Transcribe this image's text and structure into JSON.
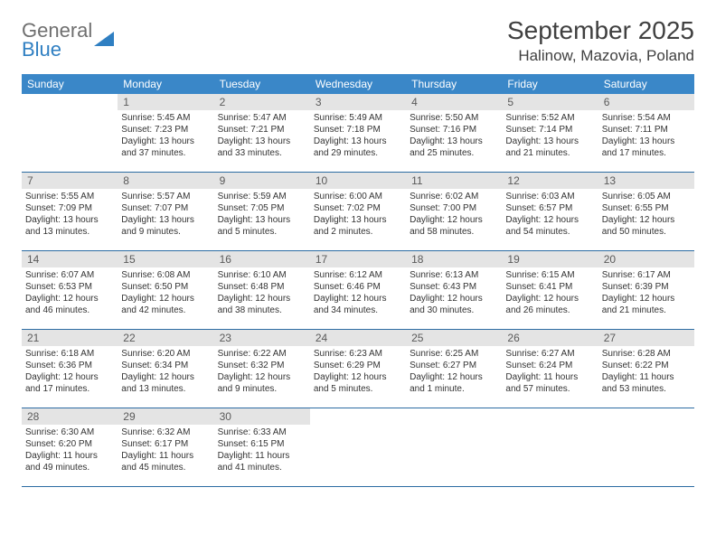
{
  "brand": {
    "part1": "General",
    "part2": "Blue"
  },
  "title": "September 2025",
  "location": "Halinow, Mazovia, Poland",
  "colors": {
    "header_bg": "#3a87c8",
    "header_text": "#ffffff",
    "daynum_bg": "#e4e4e4",
    "daynum_text": "#5a5a5a",
    "week_divider": "#2c6ca3",
    "body_text": "#333333",
    "title_text": "#404040",
    "logo_gray": "#6f6f6f",
    "logo_blue": "#2f7fc2"
  },
  "days_of_week": [
    "Sunday",
    "Monday",
    "Tuesday",
    "Wednesday",
    "Thursday",
    "Friday",
    "Saturday"
  ],
  "weeks": [
    [
      null,
      {
        "n": "1",
        "sunrise": "5:45 AM",
        "sunset": "7:23 PM",
        "daylight": "13 hours and 37 minutes."
      },
      {
        "n": "2",
        "sunrise": "5:47 AM",
        "sunset": "7:21 PM",
        "daylight": "13 hours and 33 minutes."
      },
      {
        "n": "3",
        "sunrise": "5:49 AM",
        "sunset": "7:18 PM",
        "daylight": "13 hours and 29 minutes."
      },
      {
        "n": "4",
        "sunrise": "5:50 AM",
        "sunset": "7:16 PM",
        "daylight": "13 hours and 25 minutes."
      },
      {
        "n": "5",
        "sunrise": "5:52 AM",
        "sunset": "7:14 PM",
        "daylight": "13 hours and 21 minutes."
      },
      {
        "n": "6",
        "sunrise": "5:54 AM",
        "sunset": "7:11 PM",
        "daylight": "13 hours and 17 minutes."
      }
    ],
    [
      {
        "n": "7",
        "sunrise": "5:55 AM",
        "sunset": "7:09 PM",
        "daylight": "13 hours and 13 minutes."
      },
      {
        "n": "8",
        "sunrise": "5:57 AM",
        "sunset": "7:07 PM",
        "daylight": "13 hours and 9 minutes."
      },
      {
        "n": "9",
        "sunrise": "5:59 AM",
        "sunset": "7:05 PM",
        "daylight": "13 hours and 5 minutes."
      },
      {
        "n": "10",
        "sunrise": "6:00 AM",
        "sunset": "7:02 PM",
        "daylight": "13 hours and 2 minutes."
      },
      {
        "n": "11",
        "sunrise": "6:02 AM",
        "sunset": "7:00 PM",
        "daylight": "12 hours and 58 minutes."
      },
      {
        "n": "12",
        "sunrise": "6:03 AM",
        "sunset": "6:57 PM",
        "daylight": "12 hours and 54 minutes."
      },
      {
        "n": "13",
        "sunrise": "6:05 AM",
        "sunset": "6:55 PM",
        "daylight": "12 hours and 50 minutes."
      }
    ],
    [
      {
        "n": "14",
        "sunrise": "6:07 AM",
        "sunset": "6:53 PM",
        "daylight": "12 hours and 46 minutes."
      },
      {
        "n": "15",
        "sunrise": "6:08 AM",
        "sunset": "6:50 PM",
        "daylight": "12 hours and 42 minutes."
      },
      {
        "n": "16",
        "sunrise": "6:10 AM",
        "sunset": "6:48 PM",
        "daylight": "12 hours and 38 minutes."
      },
      {
        "n": "17",
        "sunrise": "6:12 AM",
        "sunset": "6:46 PM",
        "daylight": "12 hours and 34 minutes."
      },
      {
        "n": "18",
        "sunrise": "6:13 AM",
        "sunset": "6:43 PM",
        "daylight": "12 hours and 30 minutes."
      },
      {
        "n": "19",
        "sunrise": "6:15 AM",
        "sunset": "6:41 PM",
        "daylight": "12 hours and 26 minutes."
      },
      {
        "n": "20",
        "sunrise": "6:17 AM",
        "sunset": "6:39 PM",
        "daylight": "12 hours and 21 minutes."
      }
    ],
    [
      {
        "n": "21",
        "sunrise": "6:18 AM",
        "sunset": "6:36 PM",
        "daylight": "12 hours and 17 minutes."
      },
      {
        "n": "22",
        "sunrise": "6:20 AM",
        "sunset": "6:34 PM",
        "daylight": "12 hours and 13 minutes."
      },
      {
        "n": "23",
        "sunrise": "6:22 AM",
        "sunset": "6:32 PM",
        "daylight": "12 hours and 9 minutes."
      },
      {
        "n": "24",
        "sunrise": "6:23 AM",
        "sunset": "6:29 PM",
        "daylight": "12 hours and 5 minutes."
      },
      {
        "n": "25",
        "sunrise": "6:25 AM",
        "sunset": "6:27 PM",
        "daylight": "12 hours and 1 minute."
      },
      {
        "n": "26",
        "sunrise": "6:27 AM",
        "sunset": "6:24 PM",
        "daylight": "11 hours and 57 minutes."
      },
      {
        "n": "27",
        "sunrise": "6:28 AM",
        "sunset": "6:22 PM",
        "daylight": "11 hours and 53 minutes."
      }
    ],
    [
      {
        "n": "28",
        "sunrise": "6:30 AM",
        "sunset": "6:20 PM",
        "daylight": "11 hours and 49 minutes."
      },
      {
        "n": "29",
        "sunrise": "6:32 AM",
        "sunset": "6:17 PM",
        "daylight": "11 hours and 45 minutes."
      },
      {
        "n": "30",
        "sunrise": "6:33 AM",
        "sunset": "6:15 PM",
        "daylight": "11 hours and 41 minutes."
      },
      null,
      null,
      null,
      null
    ]
  ],
  "labels": {
    "sunrise": "Sunrise:",
    "sunset": "Sunset:",
    "daylight": "Daylight:"
  }
}
